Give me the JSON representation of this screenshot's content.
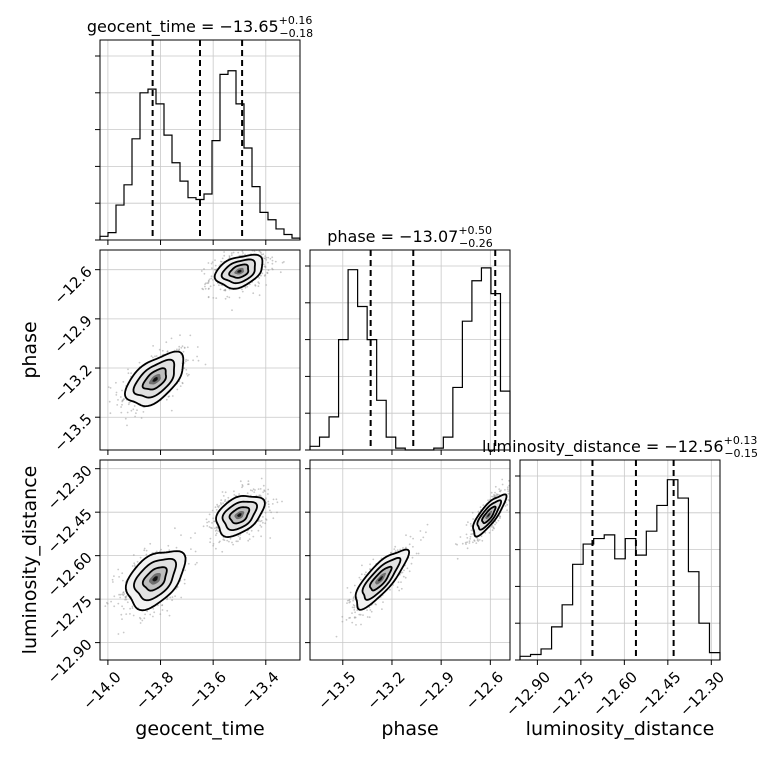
{
  "chart_data": {
    "type": "corner",
    "parameters": [
      "geocent_time",
      "phase",
      "luminosity_distance"
    ],
    "titles": [
      {
        "param": "geocent_time",
        "prefix": "geocent_time = ",
        "median": "−13.65",
        "plus": "+0.16",
        "minus": "−0.18"
      },
      {
        "param": "phase",
        "prefix": "phase = ",
        "median": "−13.07",
        "plus": "+0.50",
        "minus": "−0.26"
      },
      {
        "param": "luminosity_distance",
        "prefix": "luminosity_distance = ",
        "median": "−12.56",
        "plus": "+0.13",
        "minus": "−0.15"
      }
    ],
    "ranges": {
      "geocent_time": [
        -14.03,
        -13.27
      ],
      "phase": [
        -13.7,
        -12.48
      ],
      "luminosity_distance": [
        -12.96,
        -12.27
      ]
    },
    "ticks": {
      "geocent_time": {
        "values": [
          -14.0,
          -13.8,
          -13.6,
          -13.4
        ],
        "labels": [
          "−14.0",
          "−13.8",
          "−13.6",
          "−13.4"
        ]
      },
      "phase": {
        "values": [
          -13.5,
          -13.2,
          -12.9,
          -12.6
        ],
        "labels": [
          "−13.5",
          "−13.2",
          "−12.9",
          "−12.6"
        ]
      },
      "luminosity_distance": {
        "values": [
          -12.9,
          -12.75,
          -12.6,
          -12.45,
          -12.3
        ],
        "labels": [
          "−12.90",
          "−12.75",
          "−12.60",
          "−12.45",
          "−12.30"
        ]
      }
    },
    "quantiles": {
      "geocent_time": [
        -13.83,
        -13.65,
        -13.49
      ],
      "phase": [
        -13.33,
        -13.07,
        -12.57
      ],
      "luminosity_distance": [
        -12.71,
        -12.56,
        -12.43
      ]
    },
    "histograms": {
      "geocent_time": [
        0.02,
        0.04,
        0.19,
        0.3,
        0.55,
        0.8,
        0.82,
        0.74,
        0.57,
        0.42,
        0.32,
        0.23,
        0.22,
        0.25,
        0.54,
        0.9,
        0.92,
        0.74,
        0.5,
        0.29,
        0.15,
        0.11,
        0.06,
        0.03,
        0.01
      ],
      "phase": [
        0.02,
        0.07,
        0.18,
        0.6,
        0.98,
        0.78,
        0.6,
        0.27,
        0.07,
        0.01,
        0.0,
        0.0,
        0.0,
        0.01,
        0.07,
        0.34,
        0.7,
        0.92,
        0.99,
        0.85,
        0.32
      ],
      "luminosity_distance": [
        0.02,
        0.03,
        0.06,
        0.18,
        0.3,
        0.52,
        0.63,
        0.66,
        0.68,
        0.55,
        0.66,
        0.57,
        0.7,
        0.84,
        0.98,
        0.88,
        0.48,
        0.2,
        0.04
      ]
    },
    "modes": [
      {
        "weight": 0.45,
        "geocent_time": -13.82,
        "phase": -13.27,
        "luminosity_distance": -12.68,
        "sd": [
          0.055,
          0.08,
          0.05
        ],
        "rho_tp": 0.55,
        "rho_td": 0.45,
        "rho_pd": 0.8
      },
      {
        "weight": 0.55,
        "geocent_time": -13.5,
        "phase": -12.61,
        "luminosity_distance": -12.46,
        "sd": [
          0.045,
          0.05,
          0.035
        ],
        "rho_tp": 0.35,
        "rho_td": 0.4,
        "rho_pd": 0.8
      }
    ],
    "grid": true,
    "contour_levels": 3
  }
}
